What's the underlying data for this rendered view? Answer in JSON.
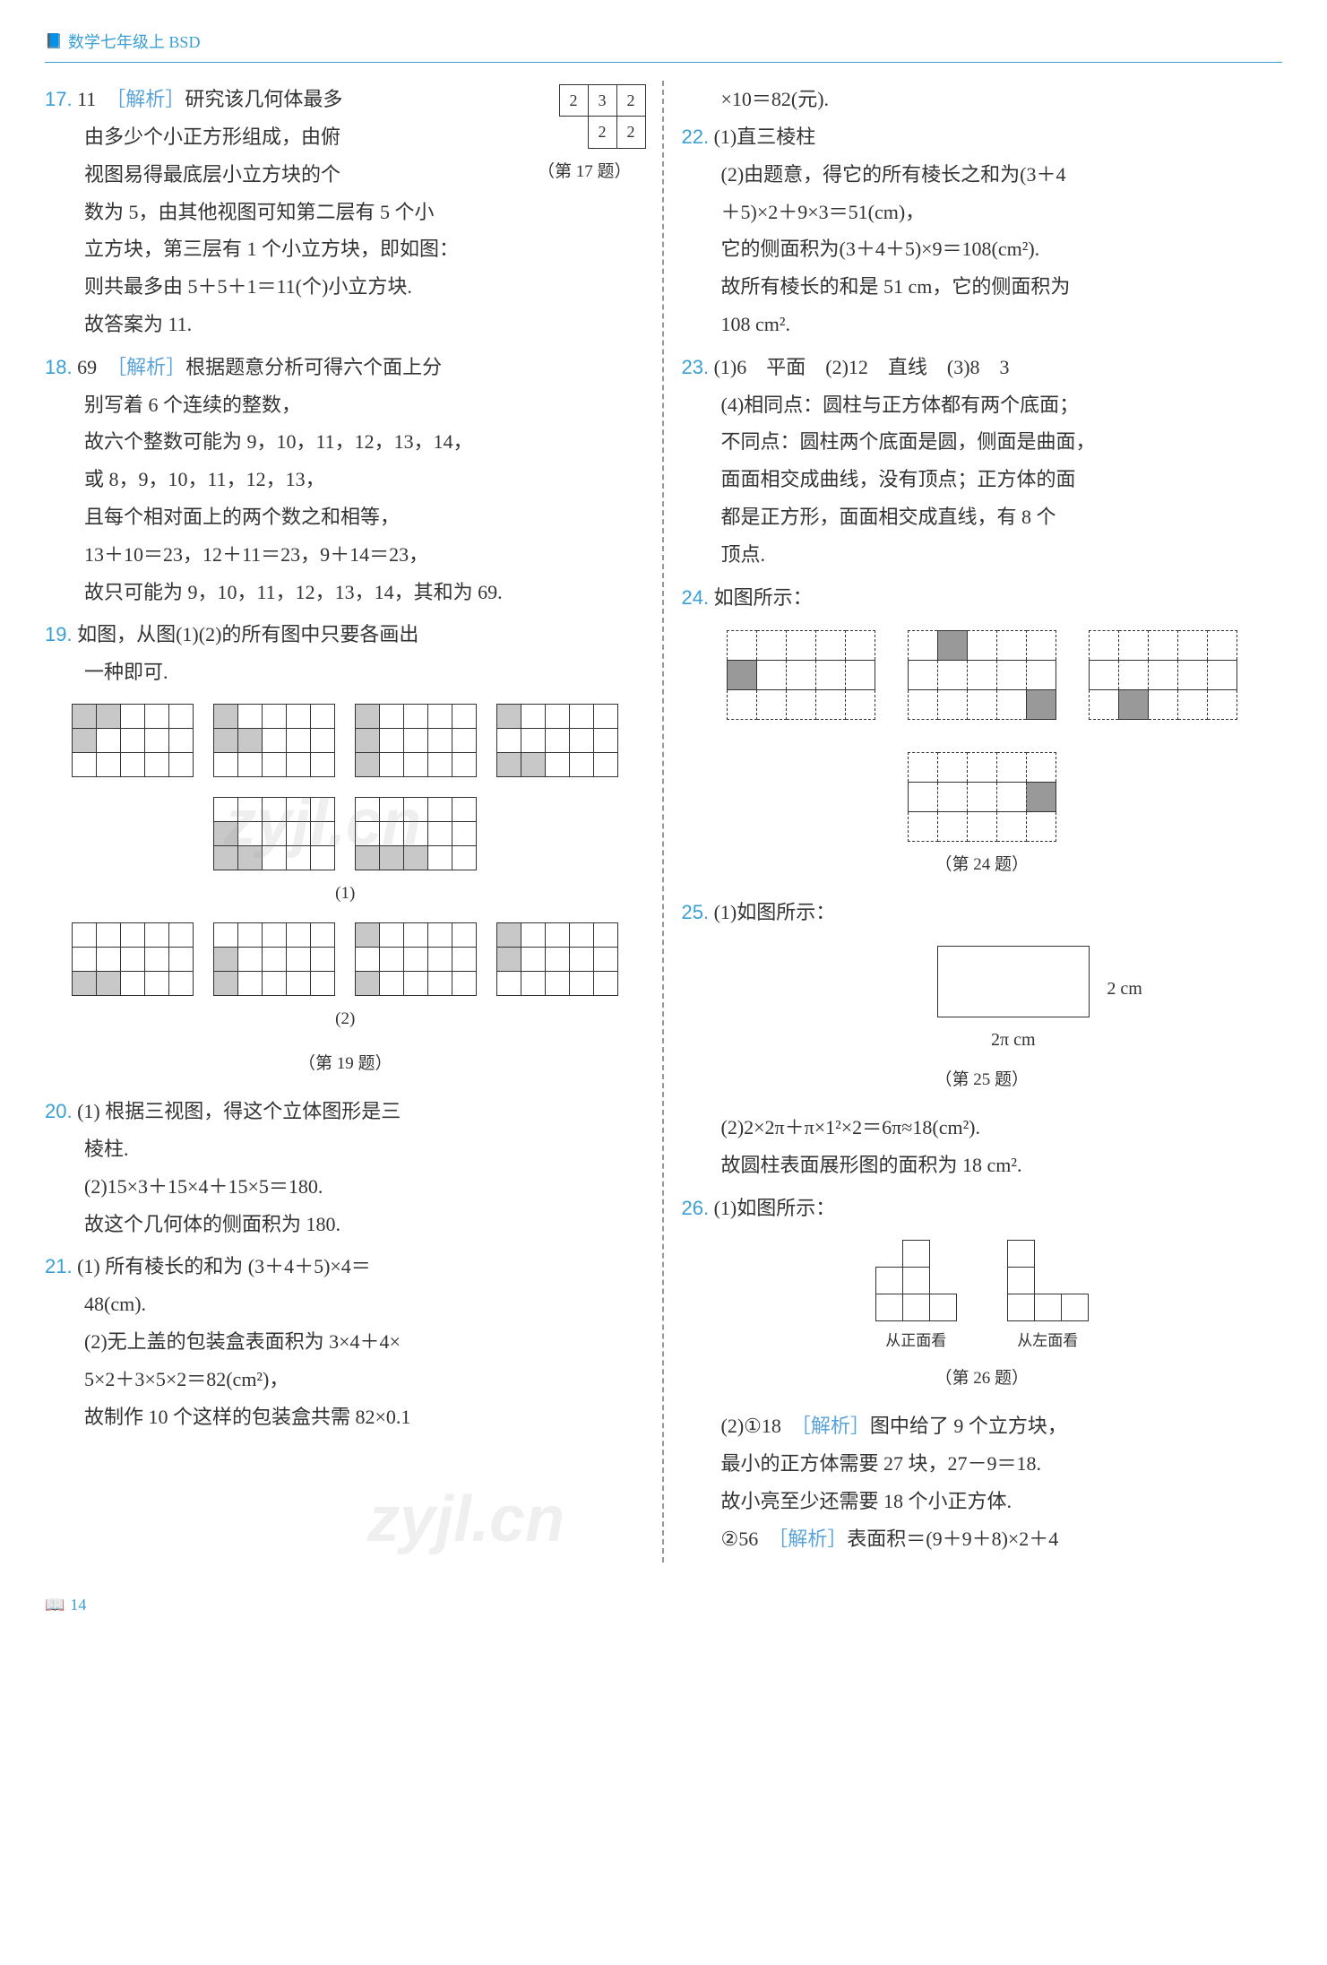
{
  "header": {
    "text": "数学七年级上 BSD"
  },
  "page_number": "14",
  "q17": {
    "num": "17.",
    "ans": "11",
    "jiexi": "［解析］",
    "line1": "研究该几何体最多",
    "line2": "由多少个小正方形组成，由俯",
    "line3": "视图易得最底层小立方块的个",
    "caption": "（第 17 题）",
    "line4": "数为 5，由其他视图可知第二层有 5 个小",
    "line5": "立方块，第三层有 1 个小立方块，即如图：",
    "line6": "则共最多由 5＋5＋1＝11(个)小立方块.",
    "line7": "故答案为 11.",
    "table": [
      [
        "2",
        "3",
        "2"
      ],
      [
        "",
        "2",
        "2"
      ]
    ]
  },
  "q18": {
    "num": "18.",
    "ans": "69",
    "jiexi": "［解析］",
    "line1": "根据题意分析可得六个面上分",
    "line2": "别写着 6 个连续的整数，",
    "line3": "故六个整数可能为 9，10，11，12，13，14，",
    "line4": "或 8，9，10，11，12，13，",
    "line5": "且每个相对面上的两个数之和相等，",
    "line6": "13＋10＝23，12＋11＝23，9＋14＝23，",
    "line7": "故只可能为 9，10，11，12，13，14，其和为 69."
  },
  "q19": {
    "num": "19.",
    "line1": "如图，从图(1)(2)的所有图中只要各画出",
    "line2": "一种即可.",
    "sub1": "(1)",
    "sub2": "(2)",
    "caption": "（第 19 题）"
  },
  "q20": {
    "num": "20.",
    "line1": "(1) 根据三视图，得这个立体图形是三",
    "line2": "棱柱.",
    "line3": "(2)15×3＋15×4＋15×5＝180.",
    "line4": "故这个几何体的侧面积为 180."
  },
  "q21": {
    "num": "21.",
    "line1": "(1) 所有棱长的和为 (3＋4＋5)×4＝",
    "line2": "48(cm).",
    "line3": "(2)无上盖的包装盒表面积为 3×4＋4×",
    "line4": "5×2＋3×5×2＝82(cm²)，",
    "line5": "故制作 10 个这样的包装盒共需 82×0.1",
    "line6": "×10＝82(元)."
  },
  "q22": {
    "num": "22.",
    "line1": "(1)直三棱柱",
    "line2": "(2)由题意，得它的所有棱长之和为(3＋4",
    "line3": "＋5)×2＋9×3＝51(cm)，",
    "line4": "它的侧面积为(3＋4＋5)×9＝108(cm²).",
    "line5": "故所有棱长的和是 51 cm，它的侧面积为",
    "line6": "108 cm²."
  },
  "q23": {
    "num": "23.",
    "line1": "(1)6　平面　(2)12　直线　(3)8　3",
    "line2": "(4)相同点：圆柱与正方体都有两个底面；",
    "line3": "不同点：圆柱两个底面是圆，侧面是曲面，",
    "line4": "面面相交成曲线，没有顶点；正方体的面",
    "line5": "都是正方形，面面相交成直线，有 8 个",
    "line6": "顶点."
  },
  "q24": {
    "num": "24.",
    "line1": "如图所示：",
    "caption": "（第 24 题）"
  },
  "q25": {
    "num": "25.",
    "line1": "(1)如图所示：",
    "side": "2 cm",
    "bottom": "2π cm",
    "caption": "（第 25 题）",
    "line2": "(2)2×2π＋π×1²×2＝6π≈18(cm²).",
    "line3": "故圆柱表面展形图的面积为 18 cm²."
  },
  "q26": {
    "num": "26.",
    "line1": "(1)如图所示：",
    "lbl1": "从正面看",
    "lbl2": "从左面看",
    "caption": "（第 26 题）",
    "line2": "(2)①18　",
    "jiexi": "［解析］",
    "line2b": "图中给了 9 个立方块，",
    "line3": "最小的正方体需要 27 块，27－9＝18.",
    "line4": "故小亮至少还需要 18 个小正方体.",
    "line5": "②56　",
    "line5b": "表面积＝(9＋9＋8)×2＋4"
  },
  "watermark": "zyjl.cn"
}
